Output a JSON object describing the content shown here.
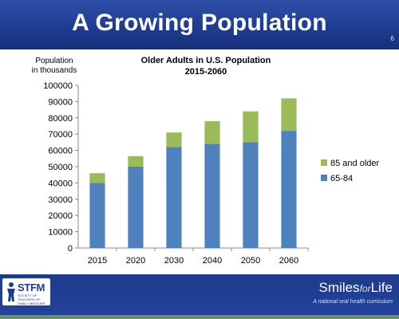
{
  "slide": {
    "title": "A Growing Population",
    "number": "6"
  },
  "chart_data": {
    "type": "bar",
    "stacked": true,
    "title": "Older Adults in U.S. Population",
    "subtitle": "2015-2060",
    "ylabel": "Population in thousands",
    "xlabel": "",
    "categories": [
      "2015",
      "2020",
      "2030",
      "2040",
      "2050",
      "2060"
    ],
    "series": [
      {
        "name": "65-84",
        "color": "#4f81bd",
        "values": [
          40000,
          50000,
          62000,
          64000,
          65000,
          72000
        ]
      },
      {
        "name": "85 and older",
        "color": "#9bbb59",
        "values": [
          6000,
          6500,
          9000,
          14000,
          19000,
          20000
        ]
      }
    ],
    "ylim": [
      0,
      100000
    ],
    "yticks": [
      0,
      10000,
      20000,
      30000,
      40000,
      50000,
      60000,
      70000,
      80000,
      90000,
      100000
    ],
    "grid": false,
    "legend_position": "right"
  },
  "footer": {
    "stfm_name": "STFM",
    "stfm_sub": "SOCIETY OF TEACHERS OF FAMILY MEDICINE",
    "sfl_smiles": "Smiles",
    "sfl_for": "for",
    "sfl_life": "Life",
    "sfl_tagline": "A national oral health curriculum"
  }
}
